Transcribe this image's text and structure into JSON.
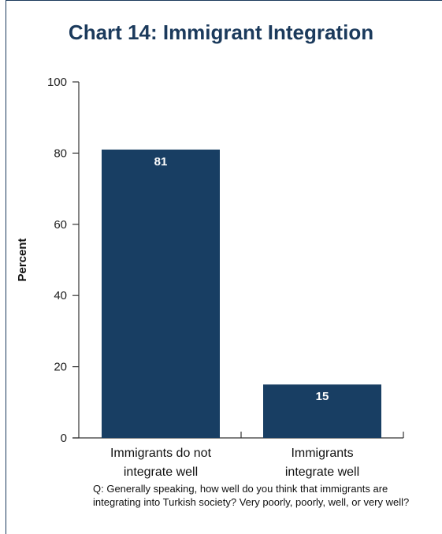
{
  "chart_data": {
    "type": "bar",
    "title": "Chart 14: Immigrant Integration",
    "ylabel": "Percent",
    "xlabel": "",
    "ylim": [
      0,
      100
    ],
    "yticks": [
      0,
      20,
      40,
      60,
      80,
      100
    ],
    "categories": [
      [
        "Immigrants do not",
        "integrate well"
      ],
      [
        "Immigrants",
        "integrate well"
      ]
    ],
    "values": [
      81,
      15
    ],
    "data_labels": [
      "81",
      "15"
    ],
    "bar_color": "#183e63",
    "grid": false,
    "legend": "none"
  },
  "note": "Q: Generally speaking, how well do you think that immigrants are integrating into Turkish society? Very poorly, poorly, well, or very well?"
}
